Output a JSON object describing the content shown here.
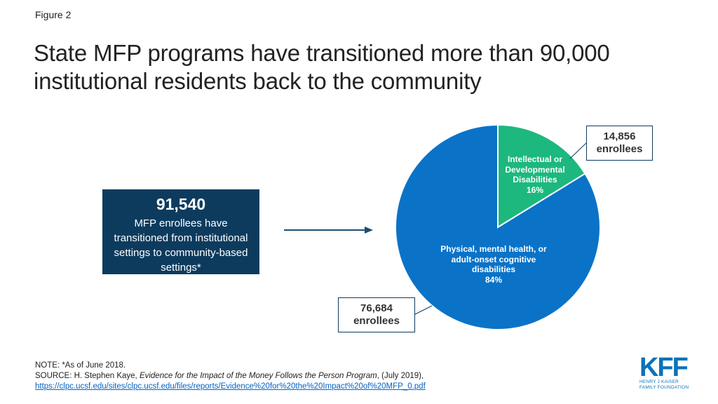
{
  "figure_label": "Figure 2",
  "title": "State MFP programs have transitioned more than 90,000 institutional residents back to the community",
  "callout": {
    "number": "91,540",
    "description": "MFP enrollees have transitioned from institutional settings to community-based settings*"
  },
  "chart_data": {
    "type": "pie",
    "slices": [
      {
        "label": "Intellectual or Developmental Disabilities",
        "percent_label": "16%",
        "value": 14856,
        "count_label": "14,856",
        "count_unit": "enrollees",
        "color": "#1db87e"
      },
      {
        "label": "Physical, mental health, or adult-onset cognitive disabilities",
        "percent_label": "84%",
        "value": 76684,
        "count_label": "76,684",
        "count_unit": "enrollees",
        "color": "#0a73c8"
      }
    ]
  },
  "note": "NOTE: *As of June 2018.",
  "source": {
    "prefix": "SOURCE: H. Stephen Kaye, ",
    "italic_title": "Evidence for the Impact of the Money Follows the Person Program",
    "suffix": ", (July 2019),",
    "url": "https://clpc.ucsf.edu/sites/clpc.ucsf.edu/files/reports/Evidence%20for%20the%20Impact%20of%20MFP_0.pdf"
  },
  "logo": {
    "wordmark": "KFF",
    "line1": "HENRY J KAISER",
    "line2": "FAMILY FOUNDATION",
    "color": "#0a73b8"
  },
  "colors": {
    "callout_bg": "#0d3b5e",
    "arrow": "#1b4f72"
  }
}
